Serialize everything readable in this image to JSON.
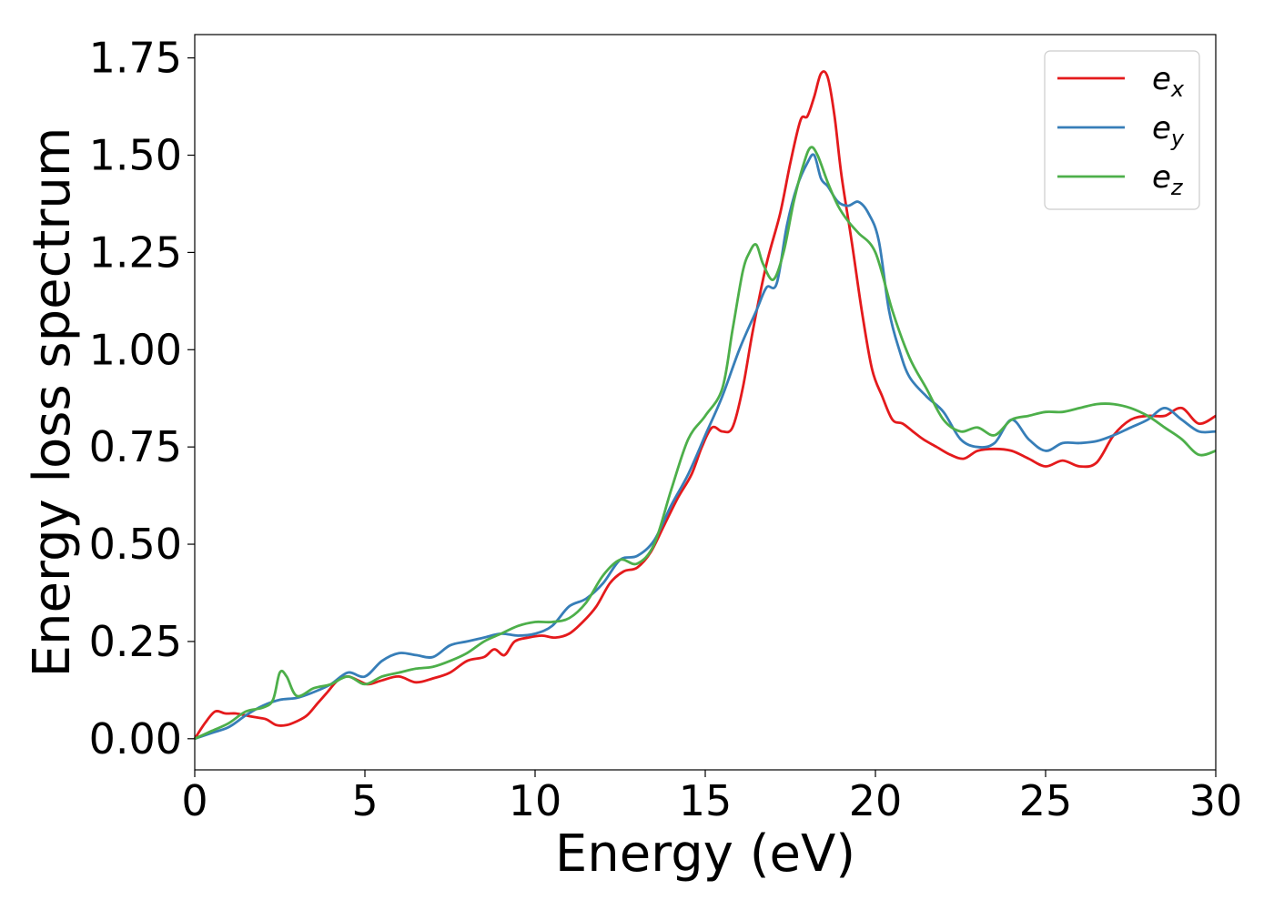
{
  "chart_data": {
    "type": "line",
    "title": "",
    "xlabel": "Energy (eV)",
    "ylabel": "Energy loss spectrum",
    "xlim": [
      0,
      30
    ],
    "ylim": [
      -0.08,
      1.81
    ],
    "xticks": [
      0,
      5,
      10,
      15,
      20,
      25,
      30
    ],
    "xtick_labels": [
      "0",
      "5",
      "10",
      "15",
      "20",
      "25",
      "30"
    ],
    "yticks": [
      0.0,
      0.25,
      0.5,
      0.75,
      1.0,
      1.25,
      1.5,
      1.75
    ],
    "ytick_labels": [
      "0.00",
      "0.25",
      "0.50",
      "0.75",
      "1.00",
      "1.25",
      "1.50",
      "1.75"
    ],
    "grid": false,
    "legend_position": "top-right",
    "series": [
      {
        "name": "e_x",
        "legend_base": "e",
        "legend_sub": "x",
        "color": "#e41a1c",
        "x": [
          0,
          0.3,
          0.6,
          0.9,
          1.2,
          1.5,
          1.8,
          2.1,
          2.4,
          2.7,
          3.0,
          3.3,
          3.6,
          3.9,
          4.2,
          4.5,
          4.8,
          5.1,
          5.5,
          6.0,
          6.5,
          7.0,
          7.5,
          8.0,
          8.5,
          8.8,
          9.1,
          9.4,
          9.8,
          10.2,
          10.6,
          11.0,
          11.4,
          11.8,
          12.2,
          12.6,
          13.0,
          13.4,
          13.8,
          14.2,
          14.6,
          14.9,
          15.2,
          15.5,
          15.8,
          16.1,
          16.4,
          16.8,
          17.2,
          17.5,
          17.8,
          18.0,
          18.2,
          18.4,
          18.6,
          18.8,
          19.0,
          19.3,
          19.6,
          19.9,
          20.2,
          20.5,
          20.8,
          21.1,
          21.4,
          21.8,
          22.2,
          22.6,
          23.0,
          23.5,
          24.0,
          24.5,
          25.0,
          25.5,
          26.0,
          26.5,
          27.0,
          27.5,
          28.0,
          28.5,
          29.0,
          29.5,
          30.0
        ],
        "y": [
          0.0,
          0.04,
          0.07,
          0.065,
          0.065,
          0.06,
          0.055,
          0.05,
          0.035,
          0.035,
          0.045,
          0.06,
          0.09,
          0.12,
          0.15,
          0.16,
          0.15,
          0.14,
          0.15,
          0.16,
          0.145,
          0.155,
          0.17,
          0.2,
          0.21,
          0.23,
          0.215,
          0.25,
          0.26,
          0.265,
          0.26,
          0.27,
          0.3,
          0.34,
          0.4,
          0.43,
          0.44,
          0.48,
          0.55,
          0.62,
          0.68,
          0.75,
          0.8,
          0.79,
          0.8,
          0.9,
          1.05,
          1.22,
          1.35,
          1.48,
          1.59,
          1.6,
          1.65,
          1.71,
          1.7,
          1.6,
          1.45,
          1.28,
          1.1,
          0.95,
          0.88,
          0.82,
          0.81,
          0.79,
          0.77,
          0.75,
          0.73,
          0.72,
          0.74,
          0.745,
          0.74,
          0.72,
          0.7,
          0.715,
          0.7,
          0.71,
          0.78,
          0.82,
          0.83,
          0.83,
          0.85,
          0.81,
          0.83
        ]
      },
      {
        "name": "e_y",
        "legend_base": "e",
        "legend_sub": "y",
        "color": "#377eb8",
        "x": [
          0,
          0.5,
          1.0,
          1.5,
          2.0,
          2.5,
          3.0,
          3.5,
          4.0,
          4.5,
          5.0,
          5.5,
          6.0,
          6.5,
          7.0,
          7.5,
          8.0,
          8.5,
          9.0,
          9.5,
          10.0,
          10.5,
          11.0,
          11.5,
          12.0,
          12.5,
          13.0,
          13.5,
          14.0,
          14.5,
          15.0,
          15.5,
          16.0,
          16.5,
          16.8,
          17.1,
          17.4,
          17.7,
          18.0,
          18.2,
          18.4,
          18.6,
          18.9,
          19.2,
          19.5,
          19.8,
          20.1,
          20.4,
          20.7,
          21.0,
          21.5,
          22.0,
          22.5,
          23.0,
          23.5,
          24.0,
          24.5,
          25.0,
          25.5,
          26.0,
          26.5,
          27.0,
          27.5,
          28.0,
          28.5,
          29.0,
          29.5,
          30.0
        ],
        "y": [
          0.0,
          0.015,
          0.03,
          0.06,
          0.085,
          0.1,
          0.105,
          0.12,
          0.14,
          0.17,
          0.16,
          0.2,
          0.22,
          0.215,
          0.21,
          0.24,
          0.25,
          0.26,
          0.27,
          0.265,
          0.27,
          0.29,
          0.34,
          0.36,
          0.4,
          0.46,
          0.47,
          0.51,
          0.6,
          0.68,
          0.78,
          0.88,
          1.0,
          1.1,
          1.16,
          1.17,
          1.32,
          1.42,
          1.48,
          1.5,
          1.44,
          1.42,
          1.38,
          1.37,
          1.38,
          1.35,
          1.28,
          1.1,
          1.0,
          0.93,
          0.88,
          0.84,
          0.77,
          0.75,
          0.76,
          0.82,
          0.77,
          0.74,
          0.76,
          0.76,
          0.765,
          0.78,
          0.8,
          0.82,
          0.85,
          0.82,
          0.79,
          0.79
        ]
      },
      {
        "name": "e_z",
        "legend_base": "e",
        "legend_sub": "z",
        "color": "#4daf4a",
        "x": [
          0,
          0.5,
          1.0,
          1.5,
          2.0,
          2.3,
          2.5,
          2.7,
          3.0,
          3.5,
          4.0,
          4.5,
          5.0,
          5.5,
          6.0,
          6.5,
          7.0,
          7.5,
          8.0,
          8.5,
          9.0,
          9.5,
          10.0,
          10.5,
          11.0,
          11.5,
          12.0,
          12.5,
          13.0,
          13.5,
          14.0,
          14.5,
          15.0,
          15.5,
          15.8,
          16.1,
          16.3,
          16.5,
          16.7,
          17.0,
          17.3,
          17.6,
          17.9,
          18.1,
          18.3,
          18.6,
          18.9,
          19.2,
          19.5,
          20.0,
          20.5,
          21.0,
          21.5,
          22.0,
          22.5,
          23.0,
          23.5,
          24.0,
          24.5,
          25.0,
          25.5,
          26.0,
          26.5,
          27.0,
          27.5,
          28.0,
          28.5,
          29.0,
          29.5,
          30.0
        ],
        "y": [
          0.0,
          0.02,
          0.04,
          0.07,
          0.08,
          0.1,
          0.17,
          0.16,
          0.11,
          0.13,
          0.14,
          0.16,
          0.14,
          0.16,
          0.17,
          0.18,
          0.185,
          0.2,
          0.22,
          0.25,
          0.27,
          0.29,
          0.3,
          0.3,
          0.31,
          0.35,
          0.42,
          0.46,
          0.45,
          0.5,
          0.64,
          0.77,
          0.83,
          0.9,
          1.05,
          1.2,
          1.25,
          1.27,
          1.22,
          1.18,
          1.25,
          1.38,
          1.48,
          1.52,
          1.5,
          1.43,
          1.37,
          1.33,
          1.3,
          1.25,
          1.1,
          0.98,
          0.9,
          0.82,
          0.79,
          0.8,
          0.78,
          0.82,
          0.83,
          0.84,
          0.84,
          0.85,
          0.86,
          0.86,
          0.85,
          0.83,
          0.8,
          0.77,
          0.73,
          0.74
        ]
      }
    ]
  }
}
